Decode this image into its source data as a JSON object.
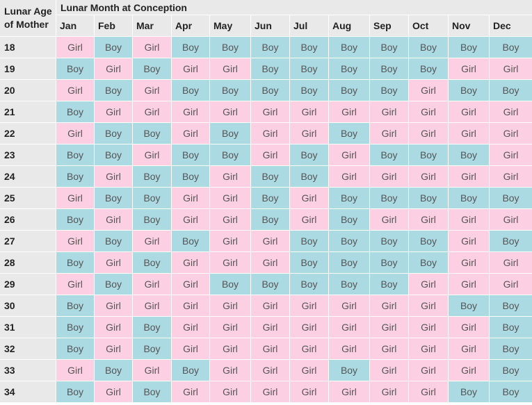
{
  "header": {
    "corner": "Lunar Age\nof Mother",
    "title": "Lunar Month at Conception",
    "months": [
      "Jan",
      "Feb",
      "Mar",
      "Apr",
      "May",
      "Jun",
      "Jul",
      "Aug",
      "Sep",
      "Oct",
      "Nov",
      "Dec"
    ]
  },
  "colors": {
    "boy": "#acdae3",
    "girl": "#fcd0e2",
    "header": "#e9e9e9"
  },
  "rows": [
    {
      "age": "18",
      "cells": [
        "Girl",
        "Boy",
        "Girl",
        "Boy",
        "Boy",
        "Boy",
        "Boy",
        "Boy",
        "Boy",
        "Boy",
        "Boy",
        "Boy"
      ]
    },
    {
      "age": "19",
      "cells": [
        "Boy",
        "Girl",
        "Boy",
        "Girl",
        "Girl",
        "Boy",
        "Boy",
        "Boy",
        "Boy",
        "Boy",
        "Girl",
        "Girl"
      ]
    },
    {
      "age": "20",
      "cells": [
        "Girl",
        "Boy",
        "Girl",
        "Boy",
        "Boy",
        "Boy",
        "Boy",
        "Boy",
        "Boy",
        "Girl",
        "Boy",
        "Boy"
      ]
    },
    {
      "age": "21",
      "cells": [
        "Boy",
        "Girl",
        "Girl",
        "Girl",
        "Girl",
        "Girl",
        "Girl",
        "Girl",
        "Girl",
        "Girl",
        "Girl",
        "Girl"
      ]
    },
    {
      "age": "22",
      "cells": [
        "Girl",
        "Boy",
        "Boy",
        "Girl",
        "Boy",
        "Girl",
        "Girl",
        "Boy",
        "Girl",
        "Girl",
        "Girl",
        "Girl"
      ]
    },
    {
      "age": "23",
      "cells": [
        "Boy",
        "Boy",
        "Girl",
        "Boy",
        "Boy",
        "Girl",
        "Boy",
        "Girl",
        "Boy",
        "Boy",
        "Boy",
        "Girl"
      ]
    },
    {
      "age": "24",
      "cells": [
        "Boy",
        "Girl",
        "Boy",
        "Boy",
        "Girl",
        "Boy",
        "Boy",
        "Girl",
        "Girl",
        "Girl",
        "Girl",
        "Girl"
      ]
    },
    {
      "age": "25",
      "cells": [
        "Girl",
        "Boy",
        "Boy",
        "Girl",
        "Girl",
        "Boy",
        "Girl",
        "Boy",
        "Boy",
        "Boy",
        "Boy",
        "Boy"
      ]
    },
    {
      "age": "26",
      "cells": [
        "Boy",
        "Girl",
        "Boy",
        "Girl",
        "Girl",
        "Boy",
        "Girl",
        "Boy",
        "Girl",
        "Girl",
        "Girl",
        "Girl"
      ]
    },
    {
      "age": "27",
      "cells": [
        "Girl",
        "Boy",
        "Girl",
        "Boy",
        "Girl",
        "Girl",
        "Boy",
        "Boy",
        "Boy",
        "Boy",
        "Girl",
        "Boy"
      ]
    },
    {
      "age": "28",
      "cells": [
        "Boy",
        "Girl",
        "Boy",
        "Girl",
        "Girl",
        "Girl",
        "Boy",
        "Boy",
        "Boy",
        "Boy",
        "Girl",
        "Girl"
      ]
    },
    {
      "age": "29",
      "cells": [
        "Girl",
        "Boy",
        "Girl",
        "Girl",
        "Boy",
        "Boy",
        "Boy",
        "Boy",
        "Boy",
        "Girl",
        "Girl",
        "Girl"
      ]
    },
    {
      "age": "30",
      "cells": [
        "Boy",
        "Girl",
        "Girl",
        "Girl",
        "Girl",
        "Girl",
        "Girl",
        "Girl",
        "Girl",
        "Girl",
        "Boy",
        "Boy"
      ]
    },
    {
      "age": "31",
      "cells": [
        "Boy",
        "Girl",
        "Boy",
        "Girl",
        "Girl",
        "Girl",
        "Girl",
        "Girl",
        "Girl",
        "Girl",
        "Girl",
        "Boy"
      ]
    },
    {
      "age": "32",
      "cells": [
        "Boy",
        "Girl",
        "Boy",
        "Girl",
        "Girl",
        "Girl",
        "Girl",
        "Girl",
        "Girl",
        "Girl",
        "Girl",
        "Boy"
      ]
    },
    {
      "age": "33",
      "cells": [
        "Girl",
        "Boy",
        "Girl",
        "Boy",
        "Girl",
        "Girl",
        "Girl",
        "Boy",
        "Girl",
        "Girl",
        "Girl",
        "Boy"
      ]
    },
    {
      "age": "34",
      "cells": [
        "Boy",
        "Girl",
        "Boy",
        "Girl",
        "Girl",
        "Girl",
        "Girl",
        "Girl",
        "Girl",
        "Girl",
        "Boy",
        "Boy"
      ]
    }
  ]
}
